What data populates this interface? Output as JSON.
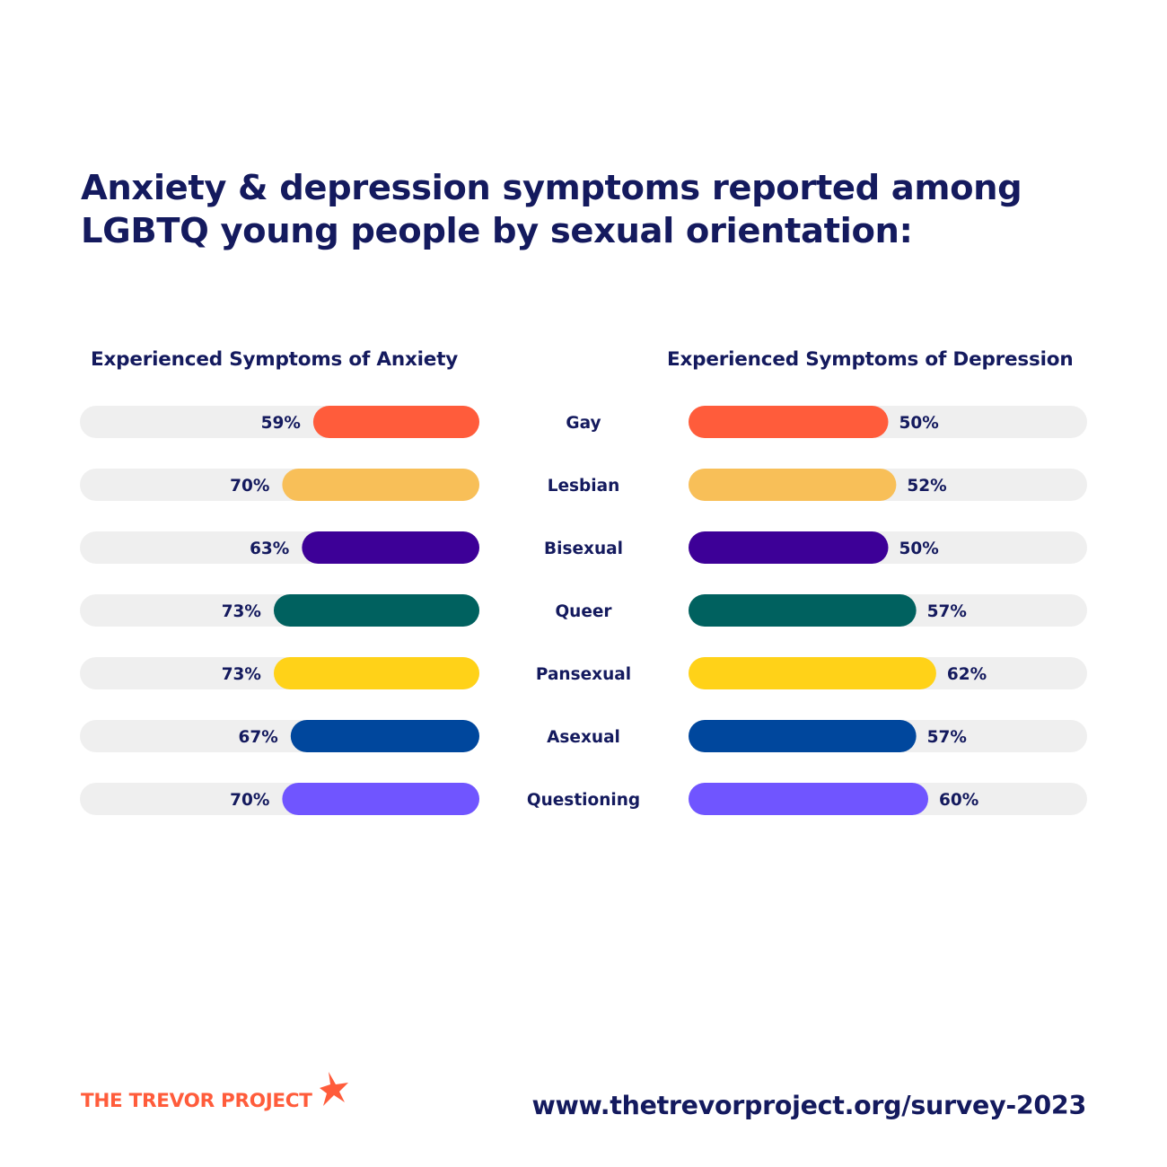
{
  "title": "Anxiety & depression symptoms reported among LGBTQ young people by sexual orientation:",
  "chart_data": {
    "type": "bar",
    "categories": [
      "Gay",
      "Lesbian",
      "Bisexual",
      "Queer",
      "Pansexual",
      "Asexual",
      "Questioning"
    ],
    "series": [
      {
        "name": "Experienced Symptoms of Anxiety",
        "values": [
          59,
          70,
          63,
          73,
          73,
          67,
          70
        ]
      },
      {
        "name": "Experienced Symptoms of Depression",
        "values": [
          50,
          52,
          50,
          57,
          62,
          57,
          60
        ]
      }
    ],
    "value_suffix": "%",
    "ylim": [
      0,
      100
    ],
    "bar_colors": [
      "#ff5c3b",
      "#f8bf58",
      "#3d0097",
      "#00615f",
      "#ffd218",
      "#00479d",
      "#7055ff"
    ],
    "track_color": "#efefef",
    "label_color": "#141a5e"
  },
  "footer": {
    "logo_text": "THE TREVOR PROJECT",
    "logo_color": "#ff5c3b",
    "url": "www.thetrevorproject.org/survey-2023"
  }
}
